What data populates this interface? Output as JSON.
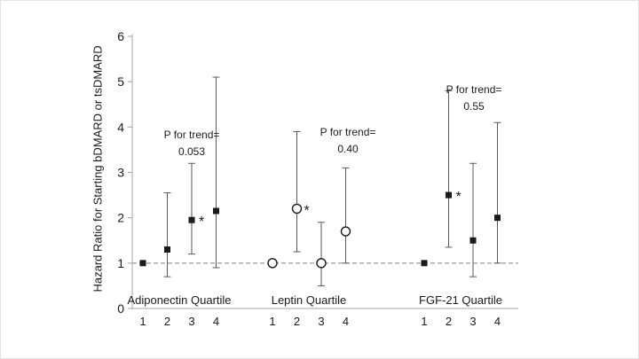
{
  "chart_data": {
    "type": "scatter",
    "title": "",
    "xlabel": "",
    "ylabel": "Hazard Ratio for Starting bDMARD or tsDMARD",
    "ylim": [
      0,
      6
    ],
    "yticks": [
      0,
      1,
      2,
      3,
      4,
      5,
      6
    ],
    "reference_line_y": 1,
    "grid": false,
    "p_trend_label": "P for trend=",
    "significance_marker": "*",
    "groups": [
      {
        "label": "Adiponectin Quartile",
        "marker": "filled-square",
        "p_for_trend": "0.053",
        "categories": [
          "1",
          "2",
          "3",
          "4"
        ],
        "points": [
          {
            "quartile": "1",
            "hr": 1.0,
            "ci_low": null,
            "ci_high": null,
            "significant": false
          },
          {
            "quartile": "2",
            "hr": 1.3,
            "ci_low": 0.7,
            "ci_high": 2.55,
            "significant": false
          },
          {
            "quartile": "3",
            "hr": 1.95,
            "ci_low": 1.2,
            "ci_high": 3.2,
            "significant": true
          },
          {
            "quartile": "4",
            "hr": 2.15,
            "ci_low": 0.9,
            "ci_high": 5.1,
            "significant": false
          }
        ]
      },
      {
        "label": "Leptin Quartile",
        "marker": "open-circle",
        "p_for_trend": "0.40",
        "categories": [
          "1",
          "2",
          "3",
          "4"
        ],
        "points": [
          {
            "quartile": "1",
            "hr": 1.0,
            "ci_low": null,
            "ci_high": null,
            "significant": false
          },
          {
            "quartile": "2",
            "hr": 2.2,
            "ci_low": 1.25,
            "ci_high": 3.9,
            "significant": true
          },
          {
            "quartile": "3",
            "hr": 1.0,
            "ci_low": 0.5,
            "ci_high": 1.9,
            "significant": false
          },
          {
            "quartile": "4",
            "hr": 1.7,
            "ci_low": 1.0,
            "ci_high": 3.1,
            "significant": false
          }
        ]
      },
      {
        "label": "FGF-21 Quartile",
        "marker": "filled-square",
        "p_for_trend": "0.55",
        "categories": [
          "1",
          "2",
          "3",
          "4"
        ],
        "points": [
          {
            "quartile": "1",
            "hr": 1.0,
            "ci_low": null,
            "ci_high": null,
            "significant": false
          },
          {
            "quartile": "2",
            "hr": 2.5,
            "ci_low": 1.35,
            "ci_high": 4.8,
            "significant": true
          },
          {
            "quartile": "3",
            "hr": 1.5,
            "ci_low": 0.7,
            "ci_high": 3.2,
            "significant": false
          },
          {
            "quartile": "4",
            "hr": 2.0,
            "ci_low": 1.0,
            "ci_high": 4.1,
            "significant": false
          }
        ]
      }
    ]
  }
}
